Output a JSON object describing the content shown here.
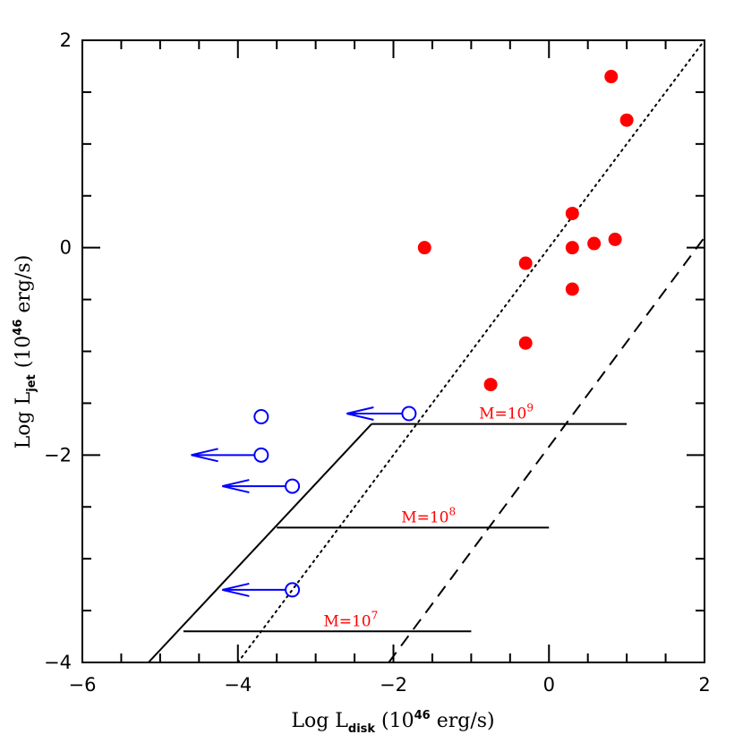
{
  "chart_data": {
    "type": "scatter",
    "xlabel": {
      "pre": "Log L",
      "sub": "disk",
      "mid": " (10",
      "sup": "46",
      "post": " erg/s)"
    },
    "ylabel": {
      "pre": "Log L",
      "sub": "jet",
      "mid": " (10",
      "sup": "46",
      "post": " erg/s)"
    },
    "xlim": [
      -6,
      2
    ],
    "ylim": [
      -4,
      2
    ],
    "x_ticks": [
      -6,
      -4,
      -2,
      0,
      2
    ],
    "x_tick_labels": [
      "−6",
      "−4",
      "−2",
      "0",
      "2"
    ],
    "y_ticks": [
      -4,
      -2,
      0,
      2
    ],
    "y_tick_labels": [
      "−4",
      "−2",
      "0",
      "2"
    ],
    "colors": {
      "detections": "#ff0000",
      "upper_limits": "#0000ff",
      "mass_labels": "#ff0000",
      "lines": "#000000"
    },
    "series": [
      {
        "name": "detections",
        "marker": "filled-circle",
        "points": [
          {
            "x": 0.8,
            "y": 1.65
          },
          {
            "x": 1.0,
            "y": 1.23
          },
          {
            "x": 0.3,
            "y": 0.33
          },
          {
            "x": -1.6,
            "y": 0.0
          },
          {
            "x": -0.3,
            "y": -0.15
          },
          {
            "x": 0.3,
            "y": 0.0
          },
          {
            "x": 0.58,
            "y": 0.04
          },
          {
            "x": 0.85,
            "y": 0.08
          },
          {
            "x": 0.3,
            "y": -0.4
          },
          {
            "x": -0.3,
            "y": -0.92
          },
          {
            "x": -0.75,
            "y": -1.32
          }
        ]
      },
      {
        "name": "upper_limits",
        "marker": "open-circle-left-arrow",
        "points": [
          {
            "x": -1.8,
            "y": -1.6,
            "arrow_to": -2.6
          },
          {
            "x": -3.7,
            "y": -1.63,
            "arrow_to": null
          },
          {
            "x": -3.7,
            "y": -2.0,
            "arrow_to": -4.6
          },
          {
            "x": -3.3,
            "y": -2.3,
            "arrow_to": -4.2
          },
          {
            "x": -3.3,
            "y": -3.3,
            "arrow_to": -4.2
          }
        ]
      }
    ],
    "lines": [
      {
        "name": "dotted",
        "style": "dotted",
        "points": [
          [
            -4.0,
            -4.0
          ],
          [
            2.0,
            2.0
          ]
        ]
      },
      {
        "name": "dashed",
        "style": "dashed",
        "points": [
          [
            -2.06,
            -4.0
          ],
          [
            2.0,
            0.1
          ]
        ]
      },
      {
        "name": "solid-diagonal",
        "style": "solid",
        "points": [
          [
            -5.15,
            -4.0
          ],
          [
            -2.28,
            -1.7
          ]
        ]
      }
    ],
    "mass_tracks": [
      {
        "label_pre": "M=10",
        "label_exp": "9",
        "x": [
          -2.28,
          1.0
        ],
        "y": -1.7,
        "label_x": -0.9
      },
      {
        "label_pre": "M=10",
        "label_exp": "8",
        "x": [
          -3.5,
          0.0
        ],
        "y": -2.7,
        "label_x": -1.9
      },
      {
        "label_pre": "M=10",
        "label_exp": "7",
        "x": [
          -4.7,
          -1.0
        ],
        "y": -3.7,
        "label_x": -2.9
      }
    ]
  }
}
